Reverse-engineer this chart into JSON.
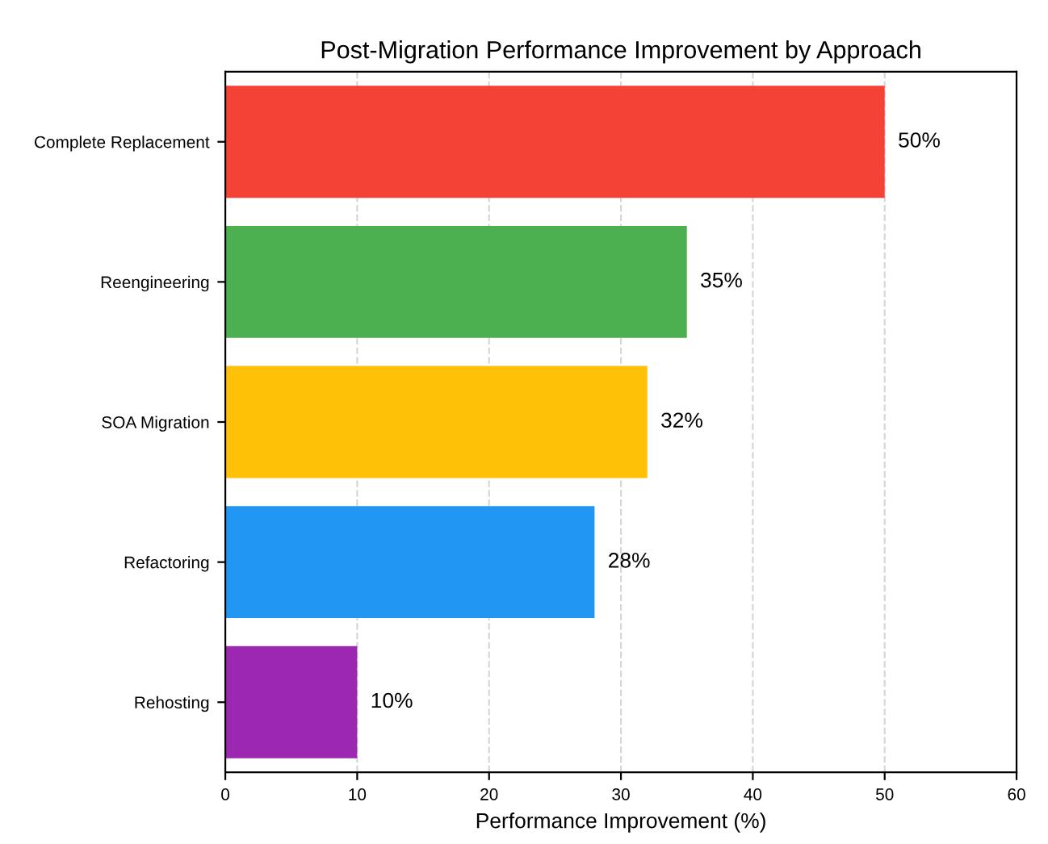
{
  "chart_data": {
    "type": "bar",
    "orientation": "horizontal",
    "title": "Post-Migration Performance Improvement by Approach",
    "xlabel": "Performance Improvement (%)",
    "categories": [
      "Complete Replacement",
      "Reengineering",
      "SOA Migration",
      "Refactoring",
      "Rehosting"
    ],
    "values": [
      50,
      35,
      32,
      28,
      10
    ],
    "colors": [
      "#f44336",
      "#4caf50",
      "#ffc107",
      "#2196f3",
      "#9c27b0"
    ],
    "value_labels": [
      "50%",
      "35%",
      "32%",
      "28%",
      "10%"
    ],
    "xlim": [
      0,
      60
    ],
    "xticks": [
      0,
      10,
      20,
      30,
      40,
      50,
      60
    ],
    "grid": "x"
  }
}
